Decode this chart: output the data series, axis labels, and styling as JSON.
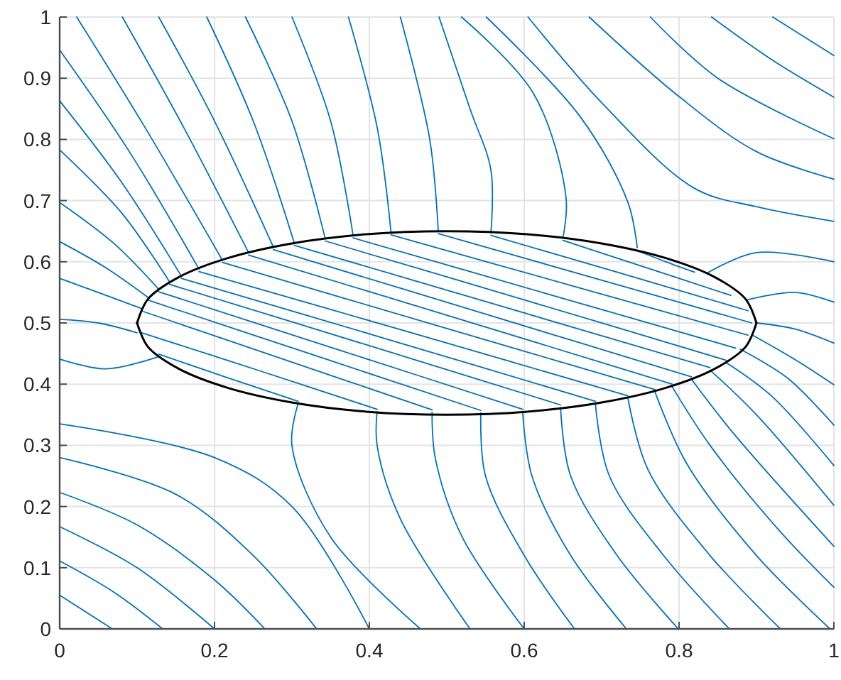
{
  "chart_data": {
    "type": "line",
    "xlim": [
      0,
      1
    ],
    "ylim": [
      0,
      1
    ],
    "xticks": [
      0,
      0.2,
      0.4,
      0.6,
      0.8,
      1
    ],
    "yticks": [
      0,
      0.1,
      0.2,
      0.3,
      0.4,
      0.5,
      0.6,
      0.7,
      0.8,
      0.9,
      1
    ],
    "grid": true,
    "line_style": "solid",
    "series": [
      {
        "color": "#0072bd",
        "x": [
          0,
          0.06,
          0.105
        ],
        "values": [
          0.573,
          0.545,
          0.524
        ]
      },
      {
        "color": "#0072bd",
        "x": [
          0,
          0.06,
          0.115
        ],
        "values": [
          0.633,
          0.59,
          0.541
        ]
      },
      {
        "color": "#0072bd",
        "x": [
          0,
          0.07,
          0.128
        ],
        "values": [
          0.697,
          0.63,
          0.555
        ]
      },
      {
        "color": "#0072bd",
        "x": [
          0,
          0.08,
          0.142
        ],
        "values": [
          0.783,
          0.68,
          0.567
        ]
      },
      {
        "color": "#0072bd",
        "x": [
          0,
          0.08,
          0.157
        ],
        "values": [
          0.863,
          0.73,
          0.577
        ]
      },
      {
        "color": "#0072bd",
        "x": [
          0,
          0.09,
          0.18
        ],
        "values": [
          0.946,
          0.78,
          0.588
        ]
      },
      {
        "color": "#0072bd",
        "x": [
          0.022,
          0.11,
          0.21
        ],
        "values": [
          1,
          0.82,
          0.603
        ]
      },
      {
        "color": "#0072bd",
        "x": [
          0.081,
          0.16,
          0.244
        ],
        "values": [
          1,
          0.82,
          0.615
        ]
      },
      {
        "color": "#0072bd",
        "x": [
          0.128,
          0.2,
          0.276
        ],
        "values": [
          1,
          0.83,
          0.624
        ]
      },
      {
        "color": "#0072bd",
        "x": [
          0.19,
          0.25,
          0.303
        ],
        "values": [
          1,
          0.83,
          0.631
        ]
      },
      {
        "color": "#0072bd",
        "x": [
          0.24,
          0.3,
          0.343
        ],
        "values": [
          1,
          0.83,
          0.638
        ]
      },
      {
        "color": "#0072bd",
        "x": [
          0.3,
          0.35,
          0.379
        ],
        "values": [
          1,
          0.83,
          0.643
        ]
      },
      {
        "color": "#0072bd",
        "x": [
          0.373,
          0.41,
          0.428
        ],
        "values": [
          1,
          0.82,
          0.648
        ]
      },
      {
        "color": "#0072bd",
        "x": [
          0.44,
          0.478,
          0.489
        ],
        "values": [
          1,
          0.8,
          0.65
        ]
      },
      {
        "color": "#0072bd",
        "x": [
          0.49,
          0.53,
          0.557,
          0.557
        ],
        "values": [
          1,
          0.85,
          0.75,
          0.647
        ]
      },
      {
        "color": "#0072bd",
        "x": [
          0.519,
          0.612,
          0.654,
          0.65
        ],
        "values": [
          1,
          0.875,
          0.705,
          0.639
        ]
      },
      {
        "color": "#0072bd",
        "x": [
          0.551,
          0.673,
          0.734,
          0.746
        ],
        "values": [
          1,
          0.836,
          0.697,
          0.623
        ]
      },
      {
        "color": "#0072bd",
        "x": [
          0.605,
          0.7,
          0.82,
          0.9,
          1
        ],
        "values": [
          1,
          0.86,
          0.72,
          0.69,
          0.666
        ]
      },
      {
        "color": "#0072bd",
        "x": [
          0.684,
          0.8,
          0.9,
          1
        ],
        "values": [
          1,
          0.87,
          0.78,
          0.735
        ]
      },
      {
        "color": "#0072bd",
        "x": [
          0.763,
          0.85,
          1
        ],
        "values": [
          1,
          0.9,
          0.801
        ]
      },
      {
        "color": "#0072bd",
        "x": [
          0.842,
          0.92,
          1
        ],
        "values": [
          1,
          0.93,
          0.869
        ]
      },
      {
        "color": "#0072bd",
        "x": [
          0.921,
          1
        ],
        "values": [
          1,
          0.937
        ]
      },
      {
        "color": "#0072bd",
        "x": [
          1,
          0.9,
          0.837
        ],
        "values": [
          0.6,
          0.615,
          0.582
        ]
      },
      {
        "color": "#0072bd",
        "x": [
          1,
          0.95,
          0.889
        ],
        "values": [
          0.534,
          0.55,
          0.538
        ]
      },
      {
        "color": "#0072bd",
        "x": [
          0.9,
          0.95,
          1
        ],
        "values": [
          0.5,
          0.49,
          0.467
        ]
      },
      {
        "color": "#0072bd",
        "x": [
          0,
          0.05,
          0.1
        ],
        "values": [
          0.506,
          0.5,
          0.484
        ]
      },
      {
        "color": "#0072bd",
        "x": [
          0,
          0.06,
          0.128
        ],
        "values": [
          0.441,
          0.425,
          0.445
        ]
      },
      {
        "color": "#0072bd",
        "x": [
          0,
          0.2,
          0.3,
          0.4
        ],
        "values": [
          0.335,
          0.28,
          0.2,
          0
        ]
      },
      {
        "color": "#0072bd",
        "x": [
          0,
          0.15,
          0.25,
          0.332
        ],
        "values": [
          0.28,
          0.22,
          0.12,
          0
        ]
      },
      {
        "color": "#0072bd",
        "x": [
          0,
          0.1,
          0.2,
          0.265
        ],
        "values": [
          0.223,
          0.17,
          0.08,
          0
        ]
      },
      {
        "color": "#0072bd",
        "x": [
          0,
          0.1,
          0.2
        ],
        "values": [
          0.167,
          0.1,
          0
        ]
      },
      {
        "color": "#0072bd",
        "x": [
          0,
          0.07,
          0.133
        ],
        "values": [
          0.111,
          0.06,
          0
        ]
      },
      {
        "color": "#0072bd",
        "x": [
          0,
          0.068
        ],
        "values": [
          0.055,
          0
        ]
      },
      {
        "color": "#0072bd",
        "x": [
          0.308,
          0.3,
          0.35,
          0.466
        ],
        "values": [
          0.368,
          0.3,
          0.15,
          0
        ]
      },
      {
        "color": "#0072bd",
        "x": [
          0.41,
          0.41,
          0.44,
          0.53
        ],
        "values": [
          0.355,
          0.3,
          0.18,
          0
        ]
      },
      {
        "color": "#0072bd",
        "x": [
          0.481,
          0.485,
          0.52,
          0.6
        ],
        "values": [
          0.354,
          0.28,
          0.15,
          0
        ]
      },
      {
        "color": "#0072bd",
        "x": [
          0.544,
          0.55,
          0.6,
          0.665
        ],
        "values": [
          0.353,
          0.25,
          0.12,
          0
        ]
      },
      {
        "color": "#0072bd",
        "x": [
          0.598,
          0.61,
          0.66,
          0.732
        ],
        "values": [
          0.355,
          0.25,
          0.12,
          0
        ]
      },
      {
        "color": "#0072bd",
        "x": [
          0.647,
          0.66,
          0.72,
          0.799
        ],
        "values": [
          0.362,
          0.25,
          0.12,
          0
        ]
      },
      {
        "color": "#0072bd",
        "x": [
          0.692,
          0.71,
          0.78,
          0.865
        ],
        "values": [
          0.368,
          0.25,
          0.12,
          0
        ]
      },
      {
        "color": "#0072bd",
        "x": [
          0.734,
          0.76,
          0.84,
          0.931
        ],
        "values": [
          0.377,
          0.26,
          0.12,
          0
        ]
      },
      {
        "color": "#0072bd",
        "x": [
          0.769,
          0.81,
          0.9,
          0.995
        ],
        "values": [
          0.387,
          0.27,
          0.12,
          0
        ]
      },
      {
        "color": "#0072bd",
        "x": [
          0.791,
          0.84,
          0.93,
          1
        ],
        "values": [
          0.396,
          0.3,
          0.16,
          0.068
        ]
      },
      {
        "color": "#0072bd",
        "x": [
          0.816,
          0.87,
          1
        ],
        "values": [
          0.408,
          0.32,
          0.135
        ]
      },
      {
        "color": "#0072bd",
        "x": [
          0.84,
          0.9,
          1
        ],
        "values": [
          0.423,
          0.35,
          0.202
        ]
      },
      {
        "color": "#0072bd",
        "x": [
          0.861,
          0.92,
          1
        ],
        "values": [
          0.435,
          0.38,
          0.267
        ]
      },
      {
        "color": "#0072bd",
        "x": [
          0.879,
          0.94,
          1
        ],
        "values": [
          0.457,
          0.41,
          0.333
        ]
      },
      {
        "color": "#0072bd",
        "x": [
          0.895,
          0.95,
          1
        ],
        "values": [
          0.48,
          0.44,
          0.399
        ]
      },
      {
        "color": "#0072bd",
        "x": [
          0.128,
          0.218,
          0.308
        ],
        "values": [
          0.449,
          0.41,
          0.372
        ]
      },
      {
        "color": "#0072bd",
        "x": [
          0.106,
          0.258,
          0.41
        ],
        "values": [
          0.484,
          0.422,
          0.359
        ]
      },
      {
        "color": "#0072bd",
        "x": [
          0.105,
          0.293,
          0.481
        ],
        "values": [
          0.52,
          0.439,
          0.358
        ]
      },
      {
        "color": "#0072bd",
        "x": [
          0.115,
          0.3295,
          0.544
        ],
        "values": [
          0.537,
          0.447,
          0.357
        ]
      },
      {
        "color": "#0072bd",
        "x": [
          0.128,
          0.363,
          0.598
        ],
        "values": [
          0.551,
          0.455,
          0.359
        ]
      },
      {
        "color": "#0072bd",
        "x": [
          0.142,
          0.3945,
          0.647
        ],
        "values": [
          0.563,
          0.465,
          0.366
        ]
      },
      {
        "color": "#0072bd",
        "x": [
          0.157,
          0.4245,
          0.692
        ],
        "values": [
          0.573,
          0.473,
          0.372
        ]
      },
      {
        "color": "#0072bd",
        "x": [
          0.18,
          0.457,
          0.734
        ],
        "values": [
          0.584,
          0.483,
          0.381
        ]
      },
      {
        "color": "#0072bd",
        "x": [
          0.21,
          0.4895,
          0.769
        ],
        "values": [
          0.599,
          0.495,
          0.391
        ]
      },
      {
        "color": "#0072bd",
        "x": [
          0.244,
          0.5175,
          0.791
        ],
        "values": [
          0.611,
          0.506,
          0.4
        ]
      },
      {
        "color": "#0072bd",
        "x": [
          0.276,
          0.546,
          0.816
        ],
        "values": [
          0.62,
          0.516,
          0.412
        ]
      },
      {
        "color": "#0072bd",
        "x": [
          0.303,
          0.5715,
          0.84
        ],
        "values": [
          0.627,
          0.527,
          0.427
        ]
      },
      {
        "color": "#0072bd",
        "x": [
          0.343,
          0.602,
          0.861
        ],
        "values": [
          0.634,
          0.537,
          0.439
        ]
      },
      {
        "color": "#0072bd",
        "x": [
          0.379,
          0.626,
          0.873
        ],
        "values": [
          0.639,
          0.549,
          0.459
        ]
      },
      {
        "color": "#0072bd",
        "x": [
          0.428,
          0.6585,
          0.889
        ],
        "values": [
          0.644,
          0.562,
          0.48
        ]
      },
      {
        "color": "#0072bd",
        "x": [
          0.489,
          0.6915,
          0.894
        ],
        "values": [
          0.646,
          0.573,
          0.5
        ]
      },
      {
        "color": "#0072bd",
        "x": [
          0.557,
          0.723,
          0.889
        ],
        "values": [
          0.643,
          0.582,
          0.52
        ]
      },
      {
        "color": "#0072bd",
        "x": [
          0.65,
          0.7585,
          0.867
        ],
        "values": [
          0.635,
          0.59,
          0.545
        ]
      },
      {
        "color": "#0072bd",
        "x": [
          0.746,
          0.783,
          0.82
        ],
        "values": [
          0.618,
          0.6,
          0.583
        ]
      },
      {
        "color": "#000000",
        "x": [
          0.1,
          0.114,
          0.154,
          0.217,
          0.3,
          0.396,
          0.5,
          0.604,
          0.7,
          0.783,
          0.846,
          0.886,
          0.9
        ],
        "values": [
          0.5,
          0.539,
          0.575,
          0.606,
          0.63,
          0.645,
          0.65,
          0.645,
          0.63,
          0.606,
          0.575,
          0.539,
          0.5
        ]
      },
      {
        "color": "#000000",
        "x": [
          0.1,
          0.114,
          0.154,
          0.217,
          0.3,
          0.396,
          0.5,
          0.604,
          0.7,
          0.783,
          0.846,
          0.886,
          0.9
        ],
        "values": [
          0.5,
          0.461,
          0.425,
          0.394,
          0.37,
          0.355,
          0.35,
          0.355,
          0.37,
          0.394,
          0.425,
          0.461,
          0.5
        ]
      }
    ]
  }
}
